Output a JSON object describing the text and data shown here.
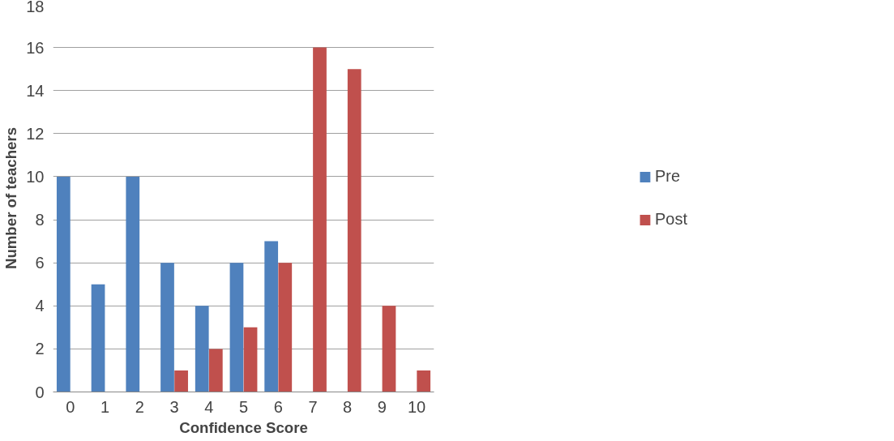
{
  "chart_data": {
    "type": "bar",
    "xlabel": "Confidence Score",
    "ylabel": "Number of teachers",
    "categories": [
      "0",
      "1",
      "2",
      "3",
      "4",
      "5",
      "6",
      "7",
      "8",
      "9",
      "10"
    ],
    "series": [
      {
        "name": "Pre",
        "color": "#4f81bd",
        "values": [
          10,
          5,
          10,
          6,
          4,
          6,
          7,
          0,
          0,
          0,
          0
        ]
      },
      {
        "name": "Post",
        "color": "#c0504d",
        "values": [
          0,
          0,
          0,
          1,
          2,
          3,
          6,
          16,
          15,
          4,
          1
        ]
      }
    ],
    "ylim": [
      0,
      18
    ],
    "yticks": [
      0,
      2,
      4,
      6,
      8,
      10,
      12,
      14,
      16,
      18
    ],
    "grid": "y",
    "legend": "right"
  }
}
